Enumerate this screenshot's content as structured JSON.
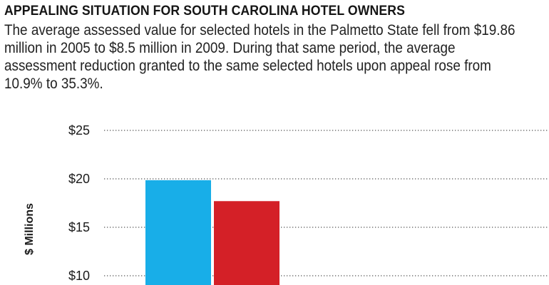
{
  "header": {
    "title": "APPEALING SITUATION FOR SOUTH CAROLINA HOTEL OWNERS",
    "subtitle": "The average assessed value for selected hotels in the Palmetto State fell from $19.86 million in 2005 to $8.5 million in 2009. During that same period, the average assessment reduction granted to the same selected hotels upon appeal rose from 10.9% to 35.3%."
  },
  "chart_data": {
    "type": "bar",
    "title": "APPEALING SITUATION FOR SOUTH CAROLINA HOTEL OWNERS",
    "subtitle": "The average assessed value for selected hotels in the Palmetto State fell from $19.86 million in 2005 to $8.5 million in 2009. During that same period, the average assessment reduction granted to the same selected hotels upon appeal rose from 10.9% to 35.3%.",
    "xlabel": "",
    "ylabel": "$ Millions",
    "ylim": [
      0,
      25
    ],
    "yticks": [
      {
        "value": 25,
        "label": "$25"
      },
      {
        "value": 20,
        "label": "$20"
      },
      {
        "value": 15,
        "label": "$15"
      },
      {
        "value": 10,
        "label": "$10"
      }
    ],
    "grid": true,
    "bars": [
      {
        "value": 19.86,
        "color": "#18aee8"
      },
      {
        "value": 17.7,
        "color": "#d42027"
      }
    ]
  }
}
